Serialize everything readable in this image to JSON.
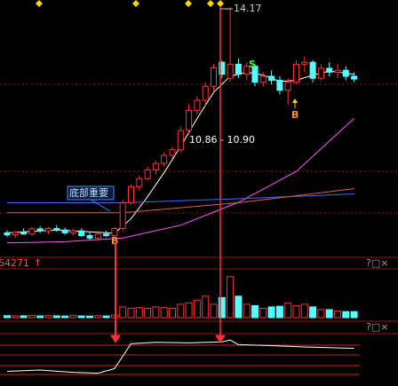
{
  "chart_data": {
    "type": "candlestick",
    "annotations": {
      "high_label": "14.17",
      "range_label": "10.86 - 10.90",
      "sell_signal": "S",
      "buy_signal_1": "B",
      "buy_signal_2": "B",
      "bottom_note": "底部重要",
      "volume_readout": "64271"
    },
    "up_color": "#ff3232",
    "down_color": "#54ffff",
    "ylim": [
      7.94,
      14.35
    ],
    "candles": {
      "open": [
        8.55,
        8.5,
        8.56,
        8.52,
        8.65,
        8.6,
        8.66,
        8.62,
        8.55,
        8.6,
        8.48,
        8.42,
        8.52,
        8.48,
        8.66,
        9.3,
        9.7,
        9.9,
        10.12,
        10.28,
        10.48,
        10.62,
        11.1,
        11.6,
        11.85,
        12.2,
        12.8,
        12.4,
        12.75,
        12.5,
        12.7,
        12.3,
        12.45,
        12.35,
        12.1,
        12.3,
        12.75,
        12.8,
        12.4,
        12.65,
        12.55,
        12.6,
        12.45
      ],
      "high": [
        8.62,
        8.6,
        8.66,
        8.7,
        8.72,
        8.7,
        8.74,
        8.68,
        8.65,
        8.66,
        8.56,
        8.55,
        8.6,
        8.7,
        9.36,
        9.75,
        9.98,
        10.2,
        10.35,
        10.55,
        10.7,
        11.2,
        11.75,
        11.95,
        12.3,
        12.75,
        12.85,
        14.17,
        12.9,
        12.8,
        12.75,
        12.55,
        12.6,
        12.45,
        12.4,
        12.85,
        12.95,
        12.85,
        12.75,
        12.8,
        12.75,
        12.7,
        12.55
      ],
      "low": [
        8.45,
        8.42,
        8.5,
        8.48,
        8.55,
        8.52,
        8.58,
        8.5,
        8.48,
        8.45,
        8.38,
        8.36,
        8.44,
        8.45,
        8.6,
        9.25,
        9.6,
        9.85,
        10.0,
        10.2,
        10.4,
        10.55,
        11.0,
        11.5,
        11.7,
        12.05,
        12.4,
        12.3,
        12.4,
        12.35,
        12.2,
        12.2,
        12.25,
        12.0,
        11.75,
        12.25,
        12.55,
        12.3,
        12.35,
        12.45,
        12.4,
        12.35,
        12.3
      ],
      "close": [
        8.5,
        8.56,
        8.52,
        8.65,
        8.6,
        8.66,
        8.62,
        8.55,
        8.6,
        8.48,
        8.42,
        8.52,
        8.48,
        8.66,
        9.3,
        9.7,
        9.9,
        10.12,
        10.28,
        10.48,
        10.62,
        11.1,
        11.6,
        11.85,
        12.2,
        12.66,
        12.5,
        12.75,
        12.5,
        12.7,
        12.3,
        12.45,
        12.35,
        12.1,
        12.3,
        12.75,
        12.8,
        12.4,
        12.65,
        12.55,
        12.6,
        12.45,
        12.38
      ]
    },
    "ma_lines": [
      {
        "color": "#ffffff",
        "x": [
          0,
          6,
          13,
          15,
          17,
          19,
          21,
          23,
          25,
          27,
          29,
          31,
          33,
          35,
          37,
          39,
          42
        ],
        "values": [
          8.55,
          8.62,
          8.54,
          8.9,
          9.45,
          10.05,
          10.7,
          11.4,
          12.05,
          12.45,
          12.55,
          12.48,
          12.32,
          12.35,
          12.48,
          12.58,
          12.5
        ]
      },
      {
        "color": "#ff55ff",
        "x": [
          0,
          7,
          14,
          21,
          28,
          35,
          42
        ],
        "values": [
          8.3,
          8.33,
          8.42,
          8.74,
          9.31,
          10.08,
          11.4
        ]
      },
      {
        "color": "#3c6cff",
        "x": [
          0,
          14,
          28,
          42
        ],
        "values": [
          9.3,
          9.3,
          9.4,
          9.52
        ]
      },
      {
        "color": "#e0604a",
        "x": [
          0,
          14,
          28,
          42
        ],
        "values": [
          9.05,
          9.05,
          9.3,
          9.65
        ]
      }
    ],
    "volume": {
      "ylim": [
        0,
        70000
      ],
      "values": [
        3000,
        2500,
        2800,
        3500,
        2600,
        3000,
        2700,
        2400,
        3200,
        2600,
        2300,
        2900,
        2500,
        3800,
        16000,
        14000,
        15000,
        14000,
        16000,
        15000,
        14000,
        20000,
        22000,
        26000,
        32000,
        20000,
        30000,
        61000,
        32000,
        20000,
        18000,
        14000,
        16000,
        17000,
        22000,
        18000,
        20000,
        16000,
        12000,
        12000,
        10000,
        9000,
        9000
      ]
    },
    "indicator": {
      "ylim": [
        0,
        100
      ],
      "color": "#ffffff",
      "x": [
        0,
        4,
        8,
        11,
        13,
        15,
        18,
        22,
        26,
        27,
        28,
        32,
        36,
        42
      ],
      "values": [
        22,
        25,
        20,
        18,
        28,
        82,
        85,
        84,
        86,
        90,
        80,
        78,
        75,
        72
      ]
    }
  }
}
